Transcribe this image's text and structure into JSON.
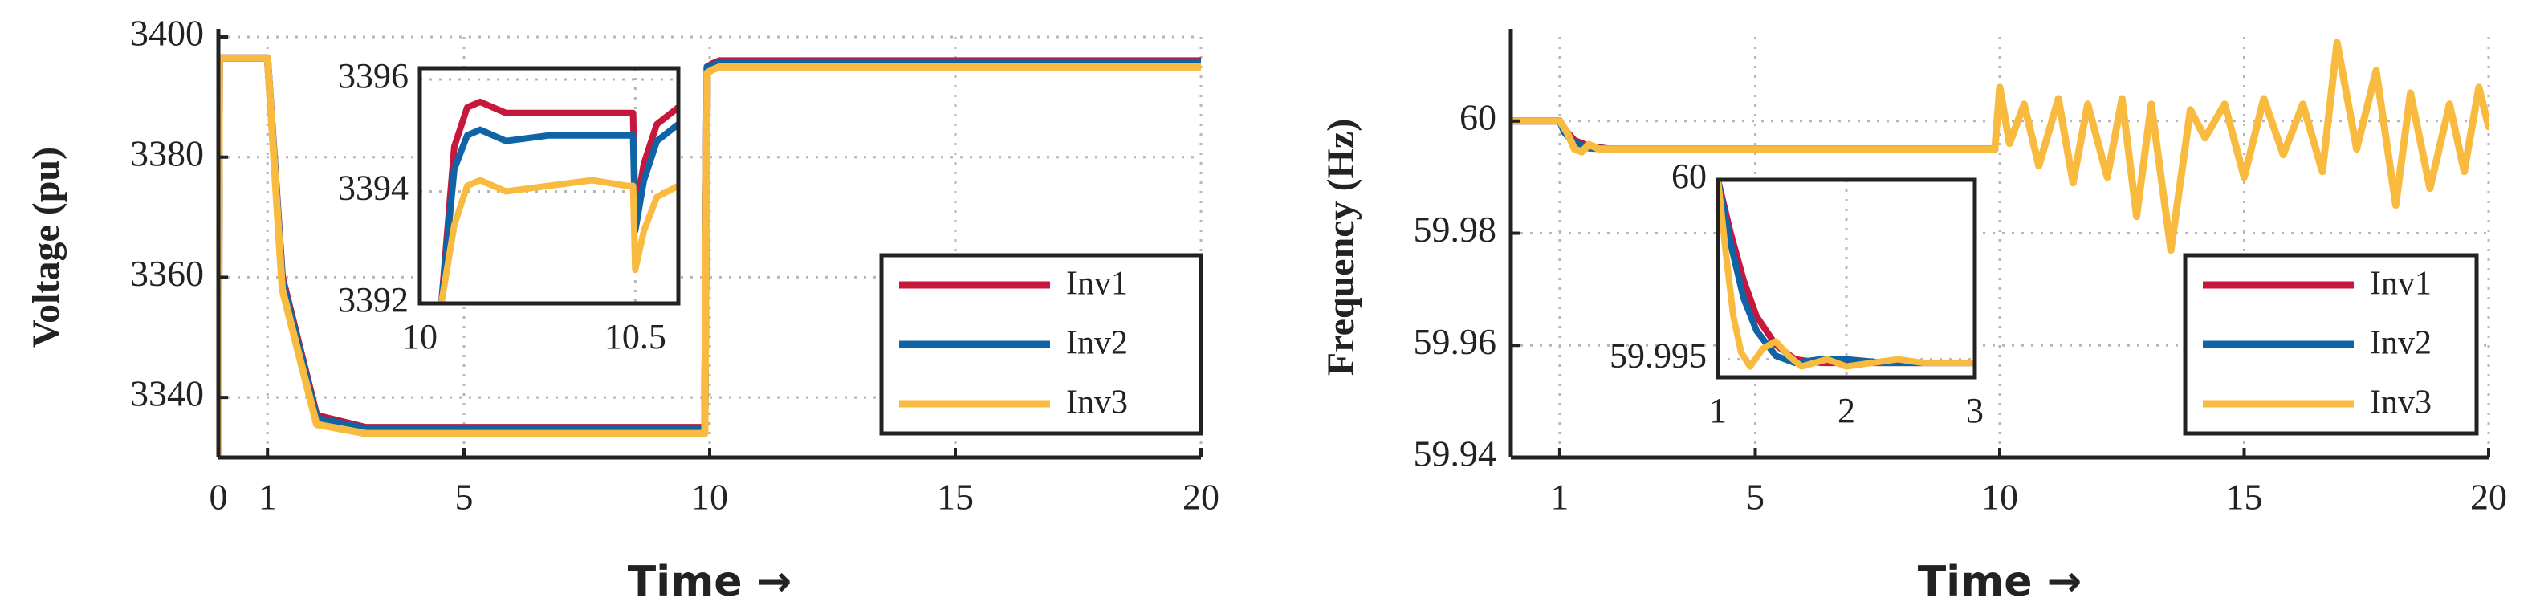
{
  "colors": {
    "inv1": "#c5183c",
    "inv2": "#0f64a6",
    "inv3": "#f9bb3f",
    "axis": "#222222",
    "grid": "#b5b5b5"
  },
  "chart_data": [
    {
      "type": "line",
      "title": "",
      "xlabel": "Time →",
      "ylabel": "Voltage (pu)",
      "xlim": [
        0,
        20
      ],
      "ylim": [
        3330,
        3400
      ],
      "xticks": [
        "0",
        "1",
        "5",
        "10",
        "15",
        "20"
      ],
      "yticks": [
        "3340",
        "3360",
        "3380",
        "3400"
      ],
      "grid": true,
      "legend": "bottom-right",
      "series": [
        {
          "name": "Inv1",
          "color_key": "inv1",
          "x": [
            0,
            0.02,
            1,
            1.3,
            2,
            3,
            5,
            9.9,
            9.95,
            10.05,
            10.2,
            12,
            15,
            18,
            20
          ],
          "y": [
            3330,
            3396.5,
            3396.5,
            3360,
            3337,
            3335,
            3335,
            3335,
            3395,
            3395.5,
            3396,
            3396,
            3396,
            3396,
            3396
          ]
        },
        {
          "name": "Inv2",
          "color_key": "inv2",
          "x": [
            0,
            0.02,
            1,
            1.3,
            2,
            3,
            5,
            9.9,
            9.95,
            10.05,
            10.2,
            12,
            15,
            18,
            20
          ],
          "y": [
            3330,
            3396.5,
            3396.5,
            3359.5,
            3336.5,
            3334.8,
            3334.8,
            3334.8,
            3395,
            3395.2,
            3395.7,
            3395.8,
            3395.8,
            3395.8,
            3395.8
          ]
        },
        {
          "name": "Inv3",
          "color_key": "inv3",
          "x": [
            0,
            0.02,
            1,
            1.3,
            2,
            3,
            5,
            9.9,
            9.95,
            10.05,
            10.2,
            12,
            15,
            18,
            20
          ],
          "y": [
            3330,
            3396.5,
            3396.5,
            3358,
            3335.5,
            3334,
            3334,
            3334,
            3394,
            3394.5,
            3395,
            3395,
            3395,
            3395,
            3395
          ]
        }
      ],
      "inset": {
        "xlim": [
          10,
          10.6
        ],
        "ylim": [
          3392,
          3396.2
        ],
        "xticks": [
          "10",
          "10.5"
        ],
        "yticks": [
          "3392",
          "3394",
          "3396"
        ],
        "series": [
          {
            "name": "Inv1",
            "color_key": "inv1",
            "x": [
              10.05,
              10.08,
              10.11,
              10.14,
              10.2,
              10.3,
              10.4,
              10.48,
              10.495,
              10.5,
              10.52,
              10.55,
              10.6
            ],
            "y": [
              3392,
              3394.8,
              3395.5,
              3395.6,
              3395.4,
              3395.4,
              3395.4,
              3395.4,
              3395.4,
              3393.6,
              3394.5,
              3395.2,
              3395.5
            ]
          },
          {
            "name": "Inv2",
            "color_key": "inv2",
            "x": [
              10.05,
              10.08,
              10.11,
              10.14,
              10.2,
              10.3,
              10.4,
              10.48,
              10.495,
              10.5,
              10.52,
              10.55,
              10.6
            ],
            "y": [
              3392,
              3394.4,
              3395,
              3395.1,
              3394.9,
              3395,
              3395,
              3395,
              3395,
              3393.3,
              3394.2,
              3394.9,
              3395.2
            ]
          },
          {
            "name": "Inv3",
            "color_key": "inv3",
            "x": [
              10.05,
              10.08,
              10.11,
              10.14,
              10.2,
              10.3,
              10.4,
              10.48,
              10.495,
              10.5,
              10.52,
              10.55,
              10.6
            ],
            "y": [
              3392,
              3393.4,
              3394.1,
              3394.2,
              3394,
              3394.1,
              3394.2,
              3394.1,
              3394.1,
              3392.6,
              3393.3,
              3393.9,
              3394.1
            ]
          }
        ]
      }
    },
    {
      "type": "line",
      "title": "",
      "xlabel": "Time →",
      "ylabel": "Frequency (Hz)",
      "xlim": [
        0,
        20
      ],
      "ylim": [
        59.94,
        60.015
      ],
      "xticks": [
        "1",
        "5",
        "10",
        "15",
        "20"
      ],
      "yticks": [
        "59.94",
        "59.96",
        "59.98",
        "60"
      ],
      "grid": true,
      "legend": "bottom-right",
      "series": [
        {
          "name": "Inv1",
          "color_key": "inv1",
          "x": [
            0,
            1,
            1.1,
            1.3,
            1.6,
            2,
            3,
            9.9
          ],
          "y": [
            60,
            60,
            59.9985,
            59.9965,
            59.9955,
            59.995,
            59.995,
            59.995
          ]
        },
        {
          "name": "Inv2",
          "color_key": "inv2",
          "x": [
            0,
            1,
            1.1,
            1.3,
            1.6,
            2,
            3,
            9.9
          ],
          "y": [
            60,
            60,
            59.998,
            59.996,
            59.9952,
            59.995,
            59.995,
            59.995
          ]
        },
        {
          "name": "Inv3",
          "color_key": "inv3",
          "x": [
            0,
            1,
            1.15,
            1.3,
            1.45,
            1.6,
            1.8,
            2,
            2.3,
            3,
            9.9,
            10,
            10.2,
            10.5,
            10.8,
            11.2,
            11.5,
            11.8,
            12.2,
            12.5,
            12.8,
            13.1,
            13.5,
            13.9,
            14.2,
            14.6,
            15,
            15.4,
            15.8,
            16.2,
            16.6,
            16.9,
            17.3,
            17.7,
            18.1,
            18.4,
            18.8,
            19.2,
            19.5,
            19.8,
            20
          ],
          "y": [
            60,
            60,
            59.998,
            59.995,
            59.9945,
            59.9958,
            59.995,
            59.995,
            59.995,
            59.995,
            59.995,
            60.006,
            59.996,
            60.003,
            59.992,
            60.004,
            59.989,
            60.003,
            59.99,
            60.004,
            59.983,
            60.003,
            59.977,
            60.002,
            59.997,
            60.003,
            59.99,
            60.004,
            59.994,
            60.003,
            59.991,
            60.014,
            59.995,
            60.009,
            59.985,
            60.005,
            59.988,
            60.003,
            59.991,
            60.006,
            59.999
          ]
        }
      ],
      "inset": {
        "xlim": [
          1,
          3
        ],
        "ylim": [
          59.9945,
          60
        ],
        "xticks": [
          "1",
          "2",
          "3"
        ],
        "yticks": [
          "59.995",
          "60"
        ],
        "series": [
          {
            "name": "Inv1",
            "color_key": "inv1",
            "x": [
              1,
              1.1,
              1.2,
              1.3,
              1.45,
              1.6,
              1.8,
              2,
              2.3,
              2.6,
              3
            ],
            "y": [
              60,
              59.9985,
              59.9972,
              59.9962,
              59.9954,
              59.995,
              59.9949,
              59.9949,
              59.9949,
              59.9949,
              59.9949
            ]
          },
          {
            "name": "Inv2",
            "color_key": "inv2",
            "x": [
              1,
              1.1,
              1.2,
              1.3,
              1.45,
              1.6,
              1.8,
              2,
              2.3,
              2.6,
              3
            ],
            "y": [
              60,
              59.9982,
              59.9967,
              59.9958,
              59.9951,
              59.9949,
              59.995,
              59.995,
              59.9949,
              59.9949,
              59.9949
            ]
          },
          {
            "name": "Inv3",
            "color_key": "inv3",
            "x": [
              1,
              1.06,
              1.12,
              1.18,
              1.25,
              1.35,
              1.45,
              1.55,
              1.65,
              1.75,
              1.85,
              2,
              2.2,
              2.4,
              2.6,
              3
            ],
            "y": [
              60,
              59.998,
              59.9962,
              59.9952,
              59.9948,
              59.9953,
              59.9955,
              59.9951,
              59.9948,
              59.9949,
              59.995,
              59.9948,
              59.9949,
              59.995,
              59.9949,
              59.9949
            ]
          }
        ]
      }
    }
  ]
}
